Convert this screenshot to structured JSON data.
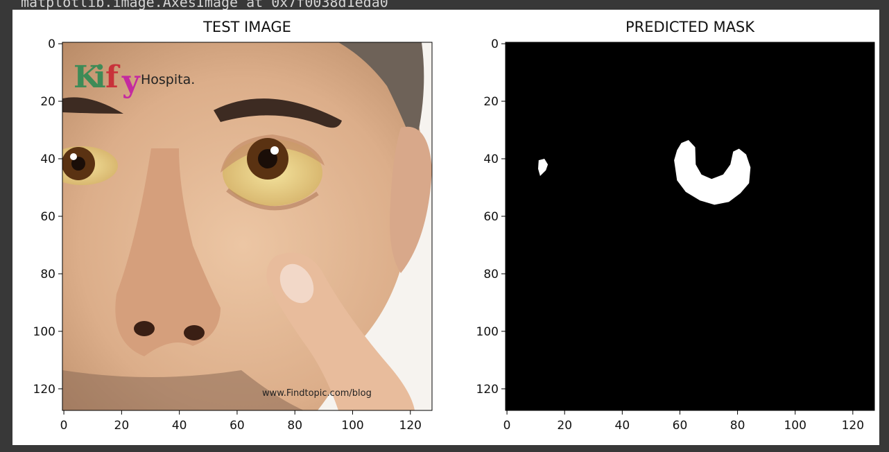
{
  "notebook": {
    "output_repr": "matplotlib.image.AxesImage at 0x7f0038d1eda0"
  },
  "colors": {
    "notebook_bg": "#383838",
    "figure_bg": "#ffffff",
    "mask_background": "#000000",
    "mask_foreground": "#ffffff",
    "skin_tone": "#e2b592",
    "iris": "#5a3212",
    "sclera_yellow": "#f0dc8c",
    "logo_green": "#3e8b57",
    "logo_red": "#c8323a",
    "logo_magenta": "#c42aa0"
  },
  "chart_data": [
    {
      "type": "image",
      "title": "TEST IMAGE",
      "image_size": [
        128,
        128
      ],
      "xlim": [
        -0.5,
        127.5
      ],
      "ylim": [
        127.5,
        -0.5
      ],
      "xticks": [
        0,
        20,
        40,
        60,
        80,
        100,
        120
      ],
      "yticks": [
        0,
        20,
        40,
        60,
        80,
        100,
        120
      ],
      "image_content": {
        "logo_letters": [
          "K",
          "i",
          "f",
          "y"
        ],
        "logo_caption": "Hospita.",
        "watermark": "www.Findtopic.com/blog",
        "subject_icon": "face-closeup-yellow-eye-icon"
      }
    },
    {
      "type": "image",
      "title": "PREDICTED MASK",
      "image_size": [
        128,
        128
      ],
      "xlim": [
        -0.5,
        127.5
      ],
      "ylim": [
        127.5,
        -0.5
      ],
      "xticks": [
        0,
        20,
        40,
        60,
        80,
        100,
        120
      ],
      "yticks": [
        0,
        20,
        40,
        60,
        80,
        100,
        120
      ],
      "background_value": 0,
      "foreground_value": 1,
      "regions": [
        {
          "name": "small-blob",
          "outline": [
            [
              11,
              40.5
            ],
            [
              13,
              40
            ],
            [
              14.2,
              42
            ],
            [
              13.5,
              44
            ],
            [
              11.5,
              46
            ],
            [
              10.8,
              43.5
            ]
          ]
        },
        {
          "name": "crescent",
          "outline": [
            [
              58,
              40.5
            ],
            [
              59,
              37
            ],
            [
              60.5,
              34.5
            ],
            [
              63,
              33.5
            ],
            [
              65.3,
              36
            ],
            [
              65.5,
              42
            ],
            [
              67.5,
              45.5
            ],
            [
              71,
              47
            ],
            [
              75,
              45.5
            ],
            [
              77.5,
              42
            ],
            [
              78.5,
              37.5
            ],
            [
              80.5,
              36.5
            ],
            [
              83,
              38.5
            ],
            [
              84.5,
              43
            ],
            [
              84,
              48.5
            ],
            [
              81,
              52
            ],
            [
              77,
              55
            ],
            [
              72,
              56
            ],
            [
              67,
              54.5
            ],
            [
              62,
              51.5
            ],
            [
              59,
              47.5
            ]
          ]
        }
      ]
    }
  ]
}
